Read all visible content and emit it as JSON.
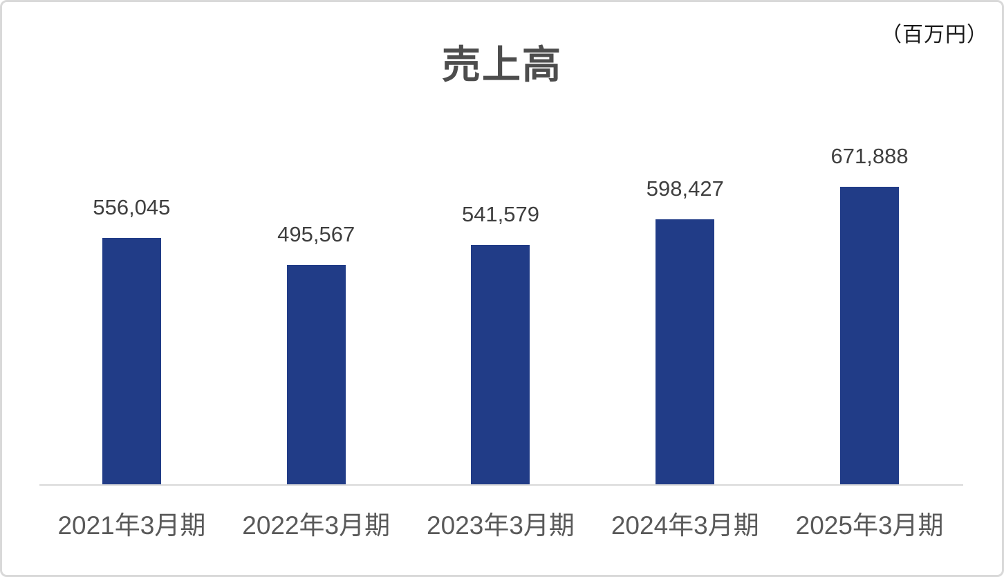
{
  "page": {
    "title": "売上高",
    "unit_label": "（百万円）"
  },
  "chart_data": {
    "type": "bar",
    "title": "売上高",
    "unit": "（百万円）",
    "categories": [
      "2021年3月期",
      "2022年3月期",
      "2023年3月期",
      "2024年3月期",
      "2025年3月期"
    ],
    "values": [
      556045,
      495567,
      541579,
      598427,
      671888
    ],
    "value_labels": [
      "556,045",
      "495,567",
      "541,579",
      "598,427",
      "671,888"
    ],
    "xlabel": "",
    "ylabel": "",
    "ylim": [
      0,
      680000
    ],
    "grid": false,
    "legend": "none",
    "data_labels_position": "above-bars",
    "bar_color": "#213c87",
    "value_label_color": "#3f3f3f",
    "tick_label_color": "#595959",
    "title_color": "#4d4d4d",
    "axis_line_color": "#d8d8d8"
  }
}
